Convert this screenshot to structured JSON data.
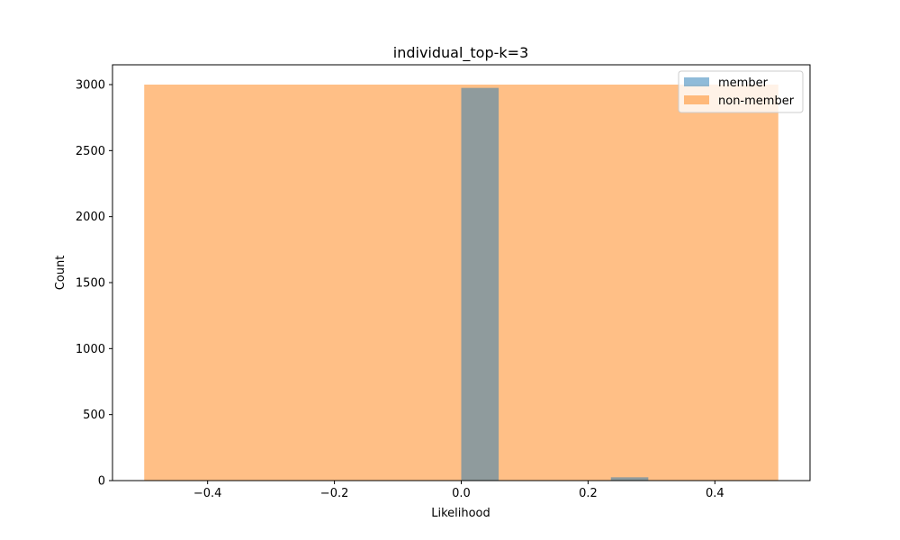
{
  "chart_data": {
    "type": "bar",
    "title": "individual_top-k=3",
    "xlabel": "Likelihood",
    "ylabel": "Count",
    "xlim": [
      -0.55,
      0.55
    ],
    "ylim": [
      0,
      3150
    ],
    "xticks": [
      -0.4,
      -0.2,
      0.0,
      0.2,
      0.4
    ],
    "xtick_labels": [
      "−0.4",
      "−0.2",
      "0.0",
      "0.2",
      "0.4"
    ],
    "yticks": [
      0,
      500,
      1000,
      1500,
      2000,
      2500,
      3000
    ],
    "ytick_labels": [
      "0",
      "500",
      "1000",
      "1500",
      "2000",
      "2500",
      "3000"
    ],
    "legend_position": "top-right",
    "grid": false,
    "series": [
      {
        "name": "member",
        "color": "#1f77b4",
        "opacity": 0.5,
        "bars": [
          {
            "x0": 0.0,
            "x1": 0.059,
            "count": 2975
          },
          {
            "x0": 0.236,
            "x1": 0.295,
            "count": 25
          }
        ]
      },
      {
        "name": "non-member",
        "color": "#ff7f0e",
        "opacity": 0.5,
        "bars": [
          {
            "x0": -0.5,
            "x1": 0.5,
            "count": 3000
          }
        ]
      }
    ]
  }
}
